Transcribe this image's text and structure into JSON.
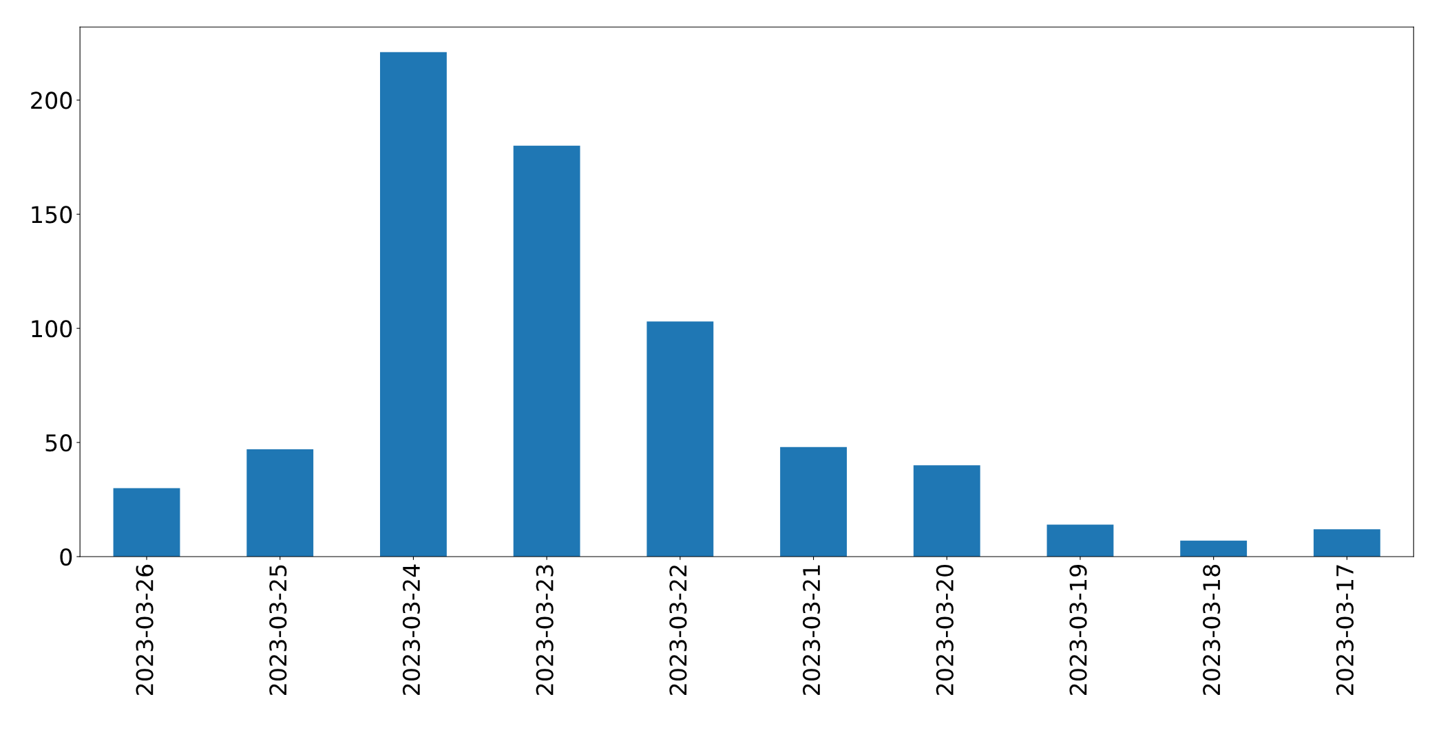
{
  "chart_data": {
    "type": "bar",
    "categories": [
      "2023-03-26",
      "2023-03-25",
      "2023-03-24",
      "2023-03-23",
      "2023-03-22",
      "2023-03-21",
      "2023-03-20",
      "2023-03-19",
      "2023-03-18",
      "2023-03-17"
    ],
    "values": [
      30,
      47,
      221,
      180,
      103,
      48,
      40,
      14,
      7,
      12
    ],
    "color": "#1f77b4",
    "ylim": [
      0,
      232
    ],
    "yticks": [
      0,
      50,
      100,
      150,
      200
    ],
    "grid": false,
    "legend": false
  }
}
